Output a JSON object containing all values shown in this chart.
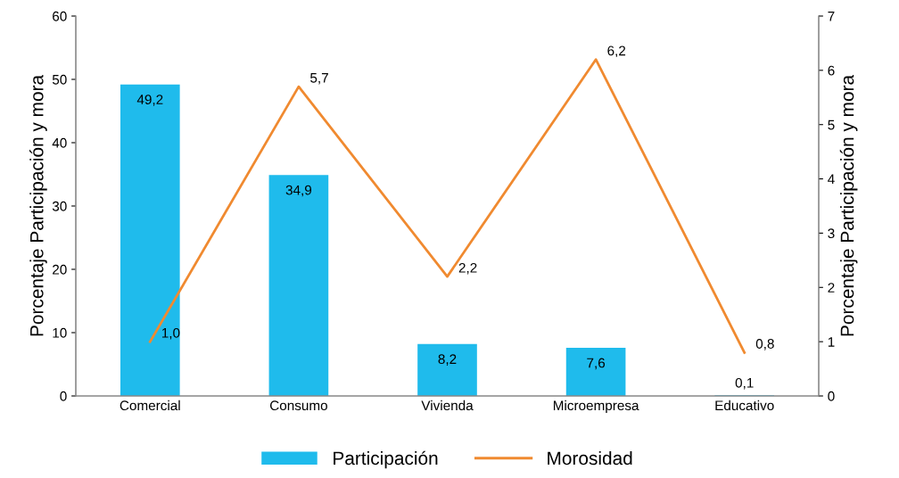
{
  "chart_data": {
    "type": "bar",
    "ylabel": "Porcentaje Participación y mora",
    "y2label": "Porcentaje Participación y mora",
    "categories": [
      "Comercial",
      "Consumo",
      "Vivienda",
      "Microempresa",
      "Educativo"
    ],
    "series": [
      {
        "name": "Participación",
        "color": "#1fbbec",
        "values": [
          49.2,
          34.9,
          8.2,
          7.6,
          0.1
        ],
        "value_labels": [
          "49,2",
          "34,9",
          "8,2",
          "7,6",
          "0,1"
        ]
      },
      {
        "name": "Morosidad",
        "type": "line",
        "axis": "y2",
        "color": "#f08a30",
        "values": [
          1.0,
          5.7,
          2.2,
          6.2,
          0.8
        ],
        "value_labels": [
          "1,0",
          "5,7",
          "2,2",
          "6,2",
          "0,8"
        ]
      }
    ],
    "ylim": [
      0,
      60
    ],
    "yticks": [
      0,
      10,
      20,
      30,
      40,
      50,
      60
    ],
    "y2lim": [
      0,
      7
    ],
    "y2ticks": [
      0,
      1,
      2,
      3,
      4,
      5,
      6,
      7
    ],
    "grid": false,
    "legend": "bottom",
    "marker": "none",
    "line_style": "solid"
  }
}
